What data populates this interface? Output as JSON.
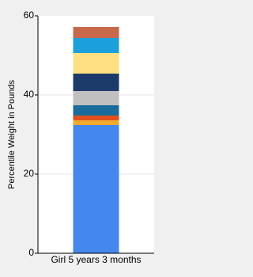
{
  "chart_data": {
    "type": "stacked_bar",
    "y_label": "Percentile Weight in Pounds",
    "categories": [
      "Girl 5 years 3 months"
    ],
    "series": [
      {
        "color": "#4488ee",
        "values": [
          32.4
        ]
      },
      {
        "color": "#f4a830",
        "values": [
          1.2
        ]
      },
      {
        "color": "#e0501a",
        "values": [
          1.2
        ]
      },
      {
        "color": "#1a6c9c",
        "values": [
          2.6
        ]
      },
      {
        "color": "#c0c0c0",
        "values": [
          3.6
        ]
      },
      {
        "color": "#1c3a6a",
        "values": [
          4.4
        ]
      },
      {
        "color": "#ffe080",
        "values": [
          5.2
        ]
      },
      {
        "color": "#1ca0dc",
        "values": [
          3.8
        ]
      },
      {
        "color": "#c8694c",
        "values": [
          2.8
        ]
      }
    ],
    "ylim": [
      0,
      60
    ],
    "yticks": [
      0,
      20,
      40,
      60
    ],
    "grid": true
  }
}
